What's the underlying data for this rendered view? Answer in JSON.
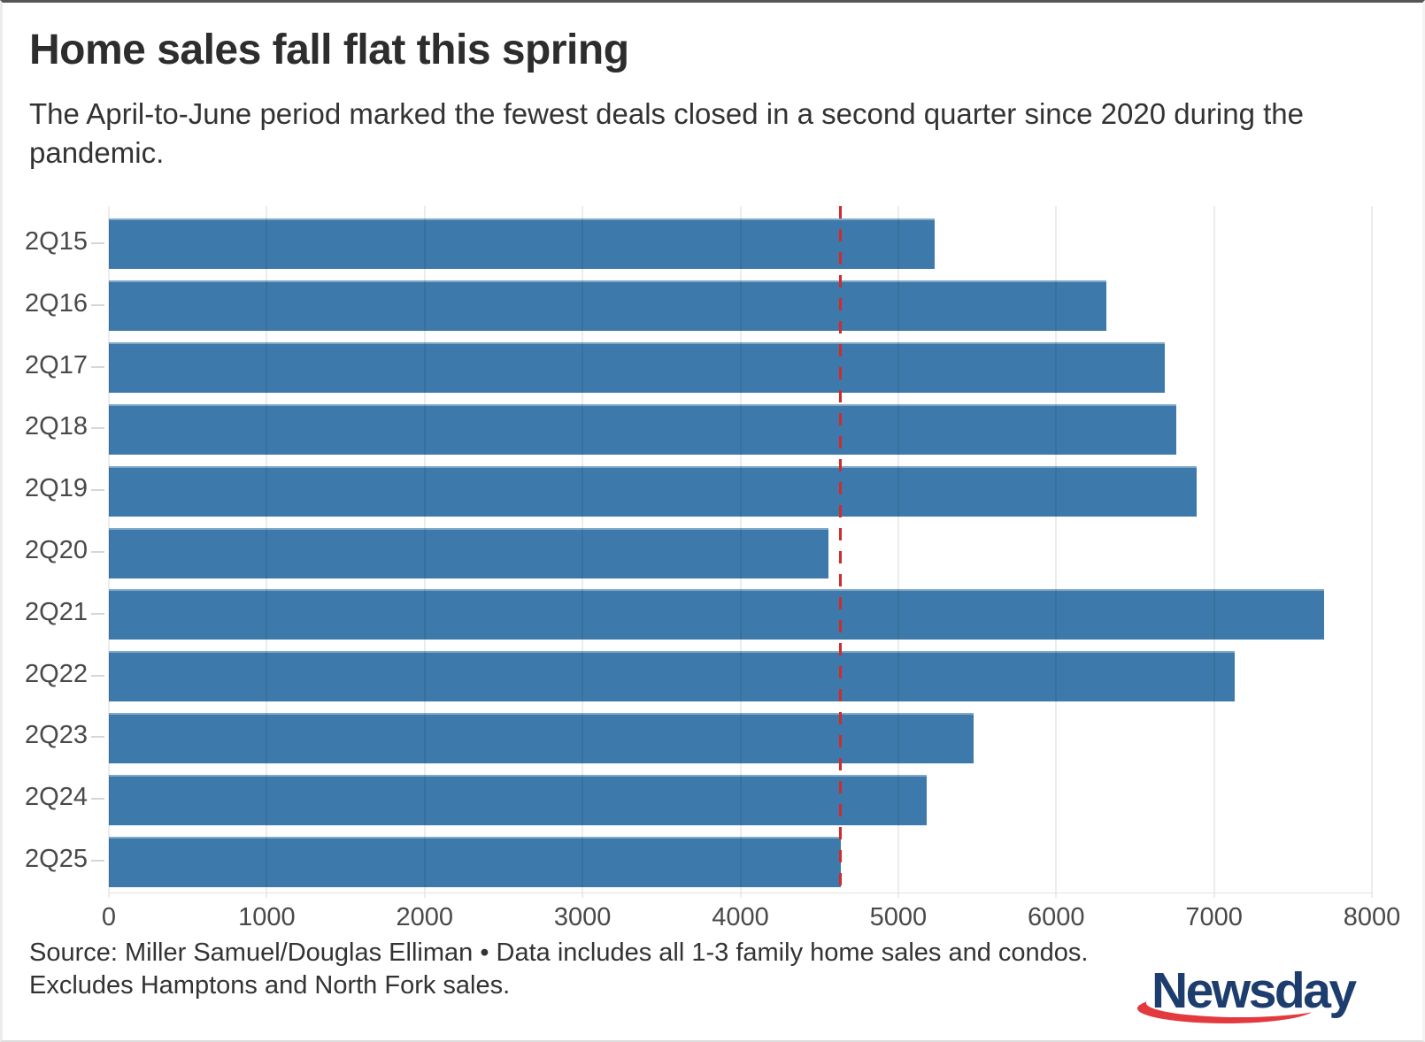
{
  "page": {
    "title": "Home sales fall flat this spring",
    "subtitle": "The April-to-June period marked the fewest deals closed in a second quarter since 2020 during the pandemic.",
    "source_text": "Source: Miller Samuel/Douglas Elliman • Data includes all 1-3 family home sales and condos. Excludes Hamptons and North Fork sales.",
    "logo_text": "Newsday"
  },
  "colors": {
    "bar": "#3d7aab",
    "reference_line": "#d12b2b",
    "grid": "rgba(0,0,0,0.075)",
    "axis_text": "#494949",
    "body_text": "#333333",
    "logo_navy": "#1d3d6e",
    "logo_red": "#e23a3e"
  },
  "chart_data": {
    "type": "bar",
    "orientation": "horizontal",
    "title": "Home sales fall flat this spring",
    "xlabel": "",
    "ylabel": "",
    "categories": [
      "2Q15",
      "2Q16",
      "2Q17",
      "2Q18",
      "2Q19",
      "2Q20",
      "2Q21",
      "2Q22",
      "2Q23",
      "2Q24",
      "2Q25"
    ],
    "values": [
      5230,
      6320,
      6690,
      6760,
      6890,
      4560,
      7695,
      7130,
      5480,
      5180,
      4634
    ],
    "xlim": [
      0,
      8000
    ],
    "x_ticks": [
      0,
      1000,
      2000,
      3000,
      4000,
      5000,
      6000,
      7000,
      8000
    ],
    "grid": true,
    "legend": "none",
    "reference_line": {
      "value": 4634,
      "style": "dashed",
      "color": "#d12b2b"
    }
  }
}
